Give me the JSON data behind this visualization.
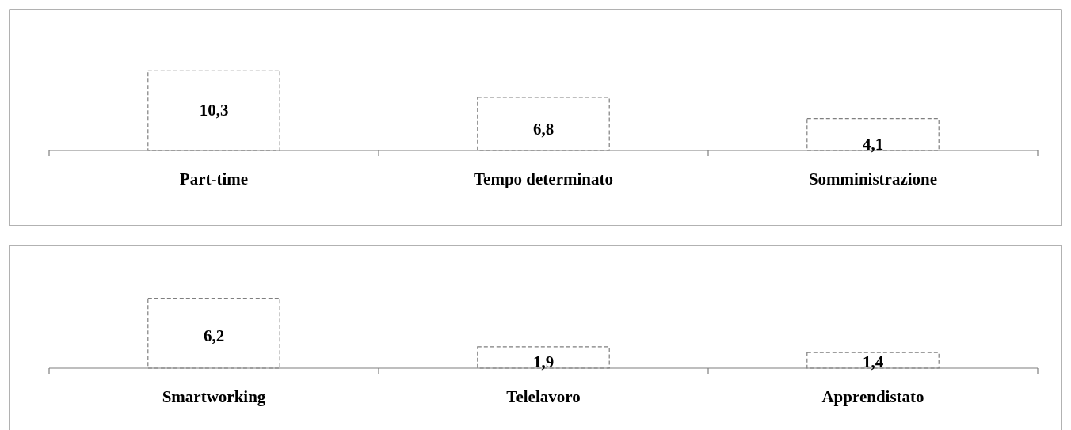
{
  "chart_data": [
    {
      "type": "bar",
      "categories": [
        "Part-time",
        "Tempo determinato",
        "Somministrazione"
      ],
      "values": [
        10.3,
        6.8,
        4.1
      ],
      "value_labels": [
        "10,3",
        "6,8",
        "4,1"
      ],
      "color": "#ffffff"
    },
    {
      "type": "bar",
      "categories": [
        "Smartworking",
        "Telelavoro",
        "Apprendistato"
      ],
      "values": [
        6.2,
        1.9,
        1.4
      ],
      "value_labels": [
        "6,2",
        "1,9",
        "1,4"
      ],
      "color": "#ffffff"
    }
  ]
}
